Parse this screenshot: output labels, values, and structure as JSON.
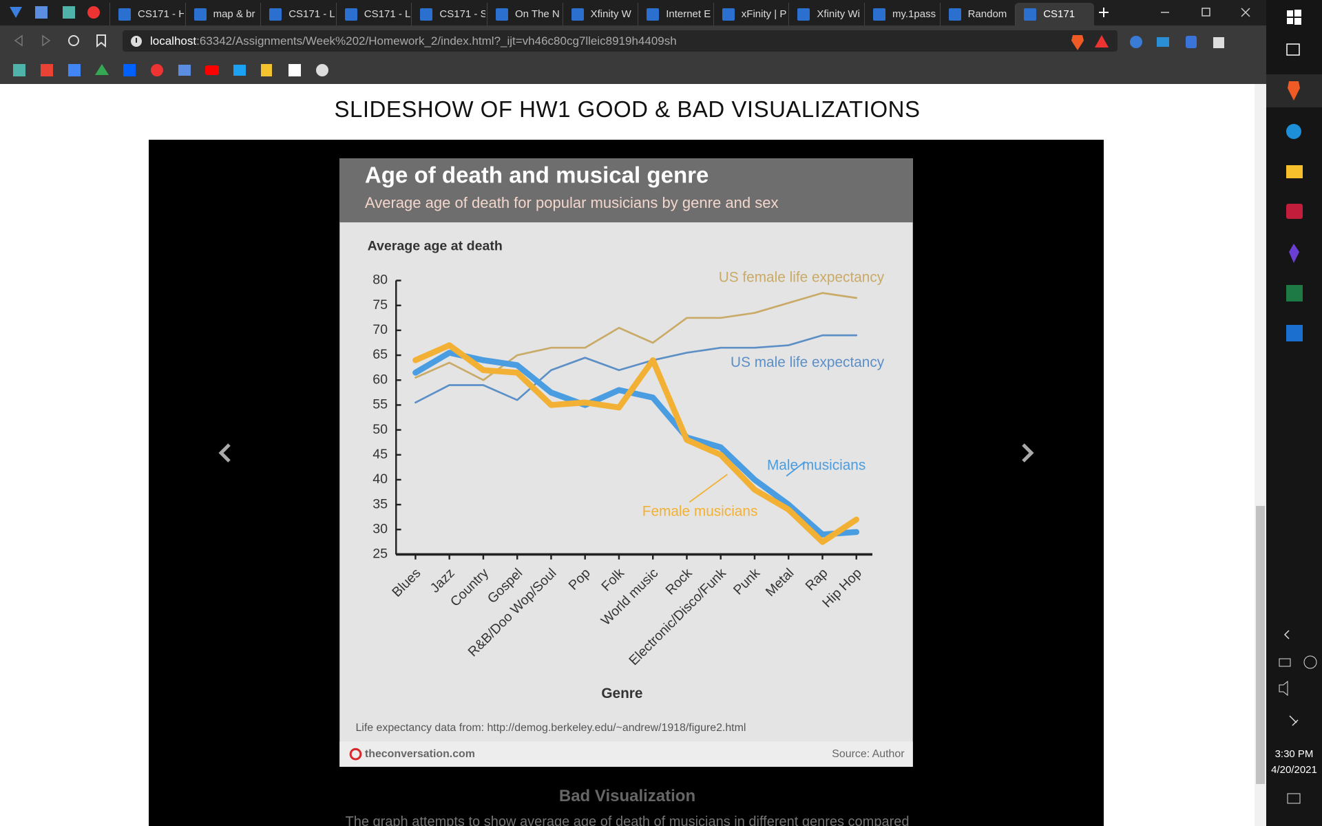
{
  "browser": {
    "tabs": [
      "CS171 - H",
      "map & br",
      "CS171 - L",
      "CS171 - L",
      "CS171 - S",
      "On The N",
      "Xfinity W",
      "Internet E",
      "xFinity | P",
      "Xfinity Wi",
      "my.1pass",
      "Random",
      "CS171"
    ],
    "url_host": "localhost",
    "url_path": ":63342/Assignments/Week%202/Homework_2/index.html?_ijt=vh46c80cg7lleic8919h4409sh"
  },
  "page": {
    "heading": "SLIDESHOW OF HW1 GOOD & BAD VISUALIZATIONS",
    "caption": "Bad Visualization",
    "description": "The graph attempts to show average age of death of musicians in different genres compared"
  },
  "chart_data": {
    "type": "line",
    "title": "Age of death and musical genre",
    "subtitle": "Average age of death for popular musicians by genre and sex",
    "y_label": "Average age at death",
    "x_label": "Genre",
    "categories": [
      "Blues",
      "Jazz",
      "Country",
      "Gospel",
      "R&B/Doo Wop/Soul",
      "Pop",
      "Folk",
      "World music",
      "Rock",
      "Electronic/Disco/Funk",
      "Punk",
      "Metal",
      "Rap",
      "Hip Hop"
    ],
    "series": [
      {
        "name": "US female life expectancy",
        "color": "#c9aa66",
        "values": [
          60.5,
          63.5,
          60,
          65,
          66.5,
          66.5,
          70.5,
          67.5,
          72.5,
          72.5,
          73.5,
          75.5,
          77.5,
          76.5
        ]
      },
      {
        "name": "US male life expectancy",
        "color": "#5b8fc6",
        "values": [
          55.5,
          59,
          59,
          56,
          62,
          64.5,
          62,
          64,
          65.5,
          66.5,
          66.5,
          67,
          69,
          69
        ]
      },
      {
        "name": "Male musicians",
        "color": "#4a9de0",
        "values": [
          61.5,
          65.5,
          64,
          63,
          57.5,
          55,
          58,
          56.5,
          48.5,
          46.5,
          40,
          35,
          29,
          29.5
        ]
      },
      {
        "name": "Female musicians",
        "color": "#f2b134",
        "values": [
          64,
          67,
          62,
          61.5,
          55,
          55.5,
          54.5,
          64,
          48,
          45,
          38,
          34,
          27.5,
          32
        ]
      }
    ],
    "ylim": [
      25,
      80
    ],
    "yticks": [
      25,
      30,
      35,
      40,
      45,
      50,
      55,
      60,
      65,
      70,
      75,
      80
    ],
    "note": "Life expectancy data from: http://demog.berkeley.edu/~andrew/1918/figure2.html",
    "brand": "theconversation.com",
    "source": "Source: Author"
  },
  "taskbar": {
    "time": "3:30 PM",
    "date": "4/20/2021"
  }
}
